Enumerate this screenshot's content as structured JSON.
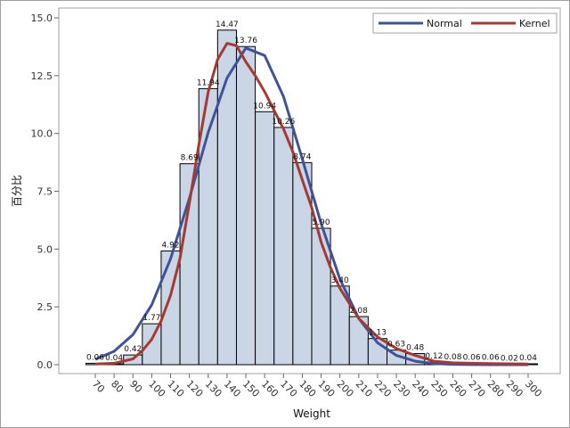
{
  "chart_data": {
    "type": "bar",
    "subtype": "histogram with density curves",
    "xlabel": "Weight",
    "ylabel": "百分比",
    "xlim": [
      65,
      305
    ],
    "ylim": [
      0,
      15
    ],
    "x_ticks": [
      70,
      80,
      90,
      100,
      110,
      120,
      130,
      140,
      150,
      160,
      170,
      180,
      190,
      200,
      210,
      220,
      230,
      240,
      250,
      260,
      270,
      280,
      290,
      300
    ],
    "y_ticks": [
      "0.0",
      "2.5",
      "5.0",
      "7.5",
      "10.0",
      "12.5",
      "15.0"
    ],
    "y_tick_values": [
      0,
      2.5,
      5,
      7.5,
      10,
      12.5,
      15
    ],
    "bin_width": 10,
    "categories": [
      70,
      80,
      90,
      100,
      110,
      120,
      130,
      140,
      150,
      160,
      170,
      180,
      190,
      200,
      210,
      220,
      230,
      240,
      250,
      260,
      270,
      280,
      290,
      300
    ],
    "values": [
      0.06,
      0.04,
      0.42,
      1.77,
      4.92,
      8.69,
      11.94,
      14.47,
      13.76,
      10.94,
      10.26,
      8.74,
      5.9,
      3.4,
      2.08,
      1.13,
      0.63,
      0.48,
      0.12,
      0.08,
      0.06,
      0.06,
      0.02,
      0.04
    ],
    "value_labels": [
      "0.06",
      "0.04",
      "0.42",
      "1.77",
      "4.92",
      "8.69",
      "11.94",
      "14.47",
      "13.76",
      "10.94",
      "10.26",
      "8.74",
      "5.90",
      "3.40",
      "2.08",
      "1.13",
      "0.63",
      "0.48",
      "0.12",
      "0.08",
      "0.06",
      "0.06",
      "0.02",
      "0.04"
    ],
    "bar_color": "#cad5e5",
    "grid": false,
    "legend": {
      "placement": "top-right",
      "entries": [
        "Normal",
        "Kernel"
      ]
    },
    "series": [
      {
        "name": "Normal",
        "color": "#3f529a",
        "x": [
          70,
          80,
          90,
          100,
          110,
          120,
          130,
          140,
          150,
          160,
          170,
          180,
          190,
          200,
          210,
          220,
          230,
          240,
          250,
          260,
          270,
          280,
          290,
          300
        ],
        "y": [
          0.23,
          0.58,
          1.3,
          2.59,
          4.58,
          7.2,
          10.05,
          12.4,
          13.7,
          13.37,
          11.6,
          8.9,
          6.1,
          3.7,
          2.0,
          0.95,
          0.4,
          0.15,
          0.05,
          0.015,
          0.005,
          0.0,
          0.0,
          0.0
        ]
      },
      {
        "name": "Kernel",
        "color": "#a33a33",
        "x": [
          70,
          80,
          90,
          95,
          100,
          105,
          110,
          115,
          120,
          125,
          130,
          135,
          140,
          145,
          150,
          155,
          160,
          165,
          170,
          175,
          180,
          185,
          190,
          195,
          200,
          210,
          220,
          230,
          240,
          250,
          260,
          270,
          280,
          290,
          300
        ],
        "y": [
          0.03,
          0.06,
          0.25,
          0.6,
          1.1,
          1.9,
          3.0,
          4.6,
          7.0,
          9.5,
          11.8,
          13.2,
          13.9,
          13.8,
          13.1,
          12.5,
          11.8,
          11.0,
          10.2,
          9.2,
          8.0,
          6.8,
          5.3,
          4.2,
          3.3,
          2.0,
          1.2,
          0.7,
          0.4,
          0.15,
          0.08,
          0.06,
          0.05,
          0.04,
          0.03
        ]
      }
    ]
  }
}
